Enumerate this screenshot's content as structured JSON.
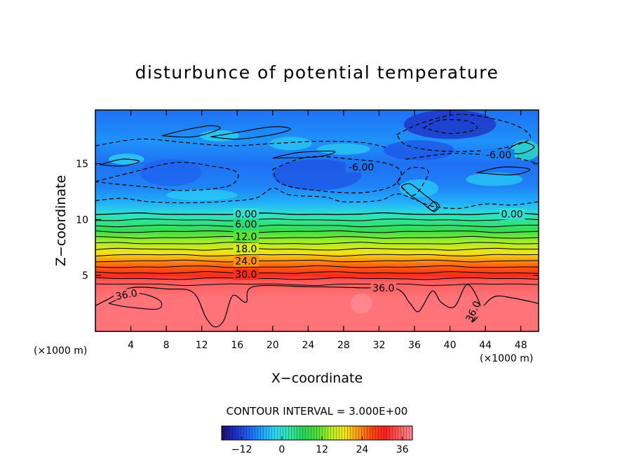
{
  "chart_data": {
    "type": "heatmap",
    "title": "disturbunce of potential temperature",
    "xlabel": "X−coordinate",
    "ylabel": "Z−coordinate",
    "x_unit_label": "(×1000 m)",
    "xlim": [
      0,
      50
    ],
    "ylim": [
      0,
      19.8
    ],
    "x_ticks": [
      "4",
      "8",
      "12",
      "16",
      "20",
      "24",
      "28",
      "32",
      "36",
      "40",
      "44",
      "48"
    ],
    "x_tick_values": [
      4,
      8,
      12,
      16,
      20,
      24,
      28,
      32,
      36,
      40,
      44,
      48
    ],
    "y_ticks": [
      "5",
      "10",
      "15"
    ],
    "y_tick_values": [
      5,
      10,
      15
    ],
    "contour_interval_text": "CONTOUR INTERVAL = 3.000E+00",
    "contour_labels": [
      {
        "text": "0.00",
        "x": 17.0,
        "y": 10.5
      },
      {
        "text": "0.00",
        "x": 47.0,
        "y": 10.5
      },
      {
        "text": "6.00",
        "x": 17.0,
        "y": 9.6
      },
      {
        "text": "12.0",
        "x": 17.0,
        "y": 8.5
      },
      {
        "text": "18.0",
        "x": 17.0,
        "y": 7.4
      },
      {
        "text": "24.0",
        "x": 17.0,
        "y": 6.3
      },
      {
        "text": "30.0",
        "x": 17.0,
        "y": 5.1
      },
      {
        "text": "36.0",
        "x": 3.5,
        "y": 3.3
      },
      {
        "text": "36.0",
        "x": 32.5,
        "y": 3.9
      },
      {
        "text": "36.0",
        "x": 42.6,
        "y": 1.8
      },
      {
        "text": "-6.00",
        "x": 30.0,
        "y": 14.7
      },
      {
        "text": "-6.00",
        "x": 45.5,
        "y": 15.8
      }
    ],
    "colorbar": {
      "range": [
        -18,
        39
      ],
      "ticks": [
        "−12",
        "0",
        "12",
        "24",
        "36"
      ],
      "tick_values": [
        -12,
        0,
        12,
        24,
        36
      ]
    },
    "field_profile": {
      "z": [
        0,
        3,
        4.5,
        5,
        6,
        7,
        8,
        9,
        10,
        10.5,
        11.5,
        13,
        15,
        17,
        19.8
      ],
      "value": [
        37,
        37,
        35,
        30,
        25,
        19,
        14,
        8,
        3,
        0,
        -5,
        -8,
        -9,
        -7,
        -9
      ]
    },
    "colors": {
      "colormap": [
        "#1c0f6c",
        "#1f2fc6",
        "#1f63f0",
        "#1fa6ff",
        "#2edcf2",
        "#32e6a8",
        "#28d85a",
        "#4ee03a",
        "#b4f024",
        "#f2e81e",
        "#ff9c10",
        "#ff4a10",
        "#ff2020",
        "#ff5a5a",
        "#ff8c96"
      ],
      "contour": "#000000"
    },
    "grid": false
  }
}
